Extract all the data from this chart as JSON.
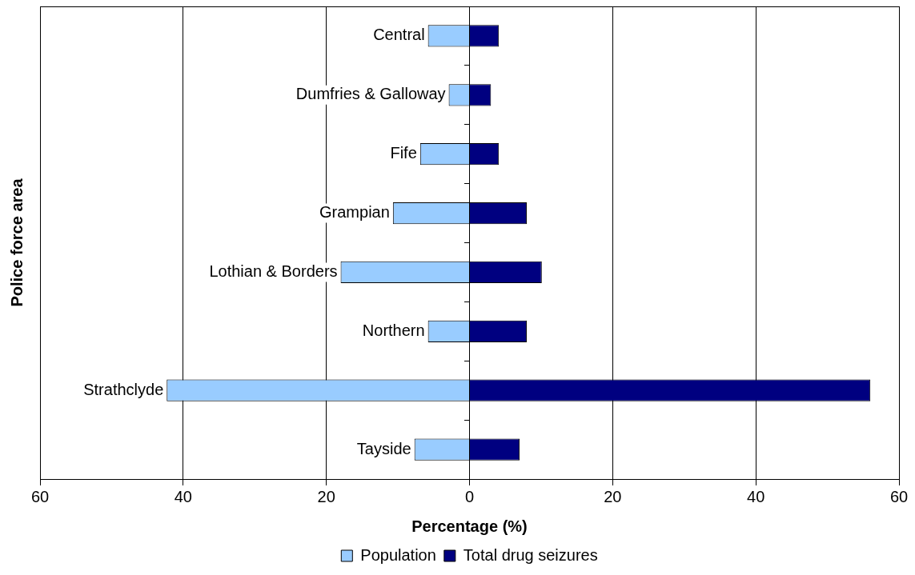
{
  "chart_data": {
    "type": "bar",
    "orientation": "horizontal",
    "stacked": true,
    "xlabel": "Percentage (%)",
    "ylabel": "Police force area",
    "categories": [
      "Central",
      "Dumfries & Galloway",
      "Fife",
      "Grampian",
      "Lothian & Borders",
      "Northern",
      "Strathclyde",
      "Tayside"
    ],
    "series": [
      {
        "name": "Population",
        "color": "#99ccff",
        "values": [
          -5.8,
          -2.9,
          -6.9,
          -10.7,
          -18.0,
          -5.8,
          -42.3,
          -7.7
        ]
      },
      {
        "name": "Total drug seizures",
        "color": "#000080",
        "values": [
          4.1,
          3.0,
          4.1,
          8.0,
          10.1,
          8.0,
          56.0,
          7.0
        ]
      }
    ],
    "xlim": [
      -60,
      60
    ],
    "xticks": [
      {
        "value": -60,
        "label": "60"
      },
      {
        "value": -40,
        "label": "40"
      },
      {
        "value": -20,
        "label": "20"
      },
      0,
      20,
      40,
      60
    ],
    "grid": "x",
    "legend": "bottom"
  }
}
